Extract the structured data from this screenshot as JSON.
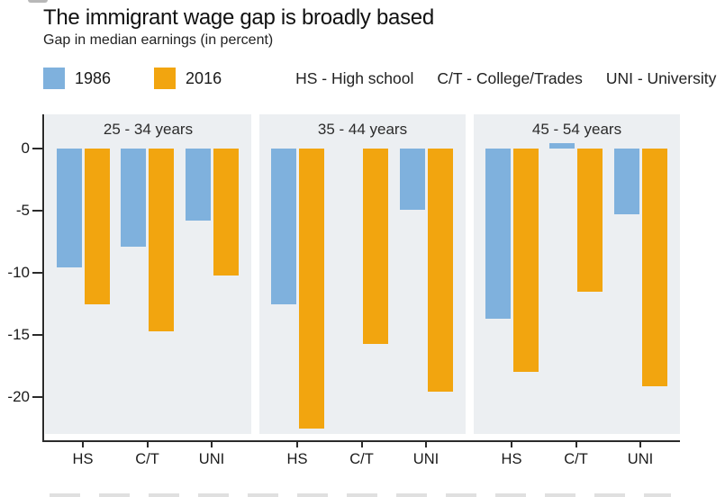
{
  "header": {
    "title": "The immigrant wage gap is broadly based",
    "subtitle": "Gap in median earnings (in percent)"
  },
  "legend": {
    "items": [
      {
        "label": "1986",
        "color": "#7FB1DD"
      },
      {
        "label": "2016",
        "color": "#F2A50F"
      }
    ],
    "abbreviations": [
      "HS - High school",
      "C/T - College/Trades",
      "UNI - University"
    ]
  },
  "colors": {
    "series_1986": "#7FB1DD",
    "series_2016": "#F2A50F",
    "panel_background": "#ECEFF2",
    "axis": "#2b2b2b",
    "text": "#1a1a1a"
  },
  "chart_data": {
    "type": "bar",
    "title": "The immigrant wage gap is broadly based",
    "subtitle": "Gap in median earnings (in percent)",
    "ylabel": "Gap in median earnings (percent)",
    "xlabel": "",
    "panels": [
      "25 - 34 years",
      "35 - 44 years",
      "45 - 54 years"
    ],
    "categories": [
      "HS",
      "C/T",
      "UNI"
    ],
    "series": [
      {
        "name": "1986",
        "color": "#7FB1DD",
        "values": [
          [
            -9.6,
            -7.9,
            -5.8
          ],
          [
            -12.5,
            0.0,
            -4.9
          ],
          [
            -13.7,
            0.4,
            -5.3
          ]
        ]
      },
      {
        "name": "2016",
        "color": "#F2A50F",
        "values": [
          [
            -12.5,
            -14.7,
            -10.2
          ],
          [
            -22.5,
            -15.7,
            -19.6
          ],
          [
            -18.0,
            -11.5,
            -19.1
          ]
        ]
      }
    ],
    "yticks": [
      0,
      -5,
      -10,
      -15,
      -20
    ],
    "ylim": [
      -23,
      2.8
    ],
    "grid": false,
    "legend_position": "top"
  },
  "layout_note_source_line": "cropped illegible source text at bottom edge"
}
